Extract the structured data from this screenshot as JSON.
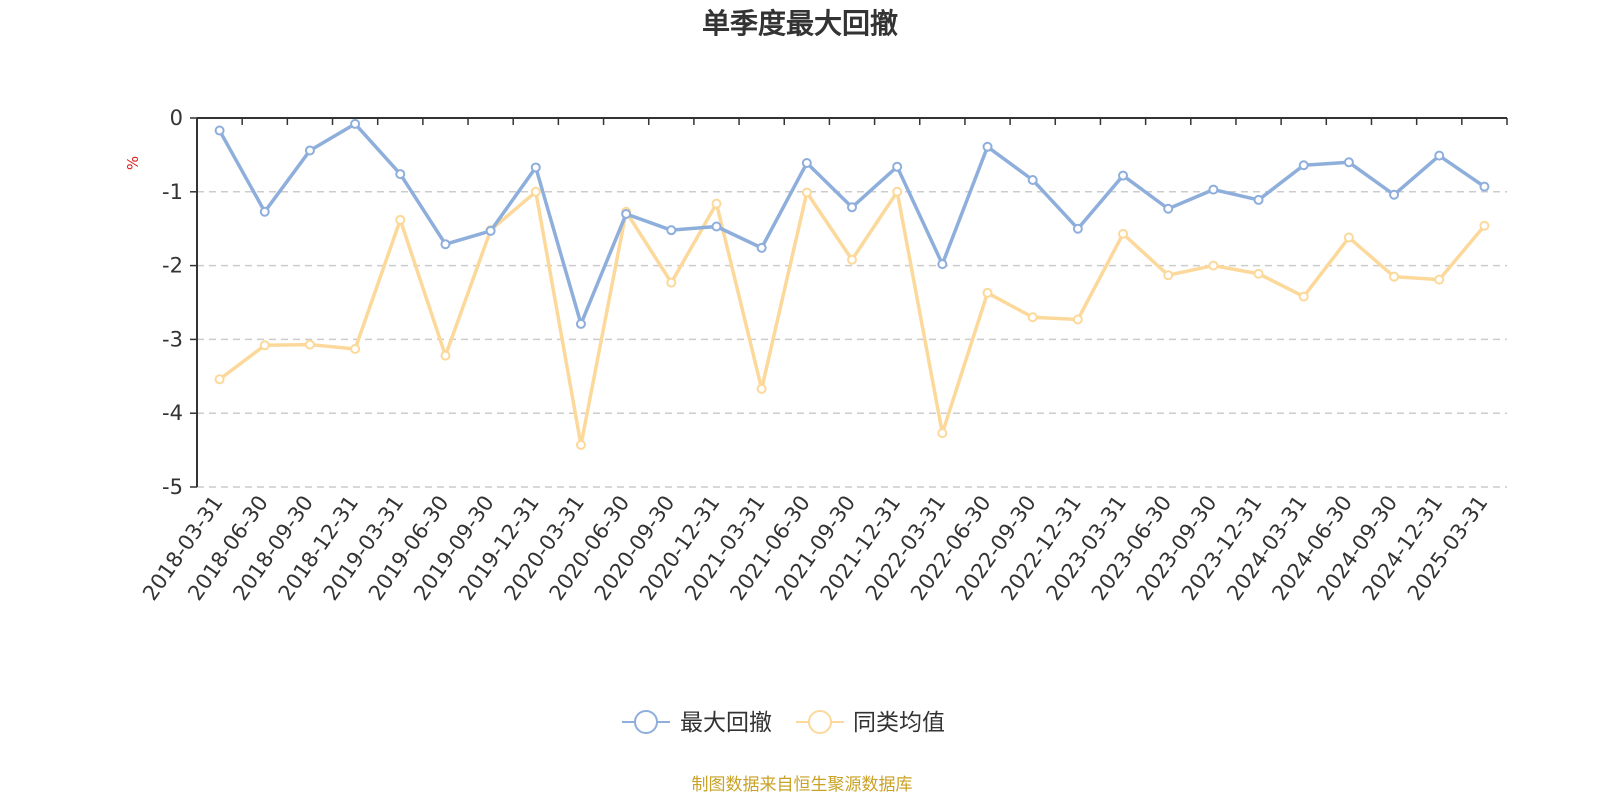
{
  "chart_data": {
    "type": "line",
    "title": "单季度最大回撤",
    "ylabel": "%",
    "xlabel": "",
    "ylim": [
      -5,
      0
    ],
    "yticks": [
      0,
      -1,
      -2,
      -3,
      -4,
      -5
    ],
    "grid": true,
    "legend_position": "bottom",
    "categories": [
      "2018-03-31",
      "2018-06-30",
      "2018-09-30",
      "2018-12-31",
      "2019-03-31",
      "2019-06-30",
      "2019-09-30",
      "2019-12-31",
      "2020-03-31",
      "2020-06-30",
      "2020-09-30",
      "2020-12-31",
      "2021-03-31",
      "2021-06-30",
      "2021-09-30",
      "2021-12-31",
      "2022-03-31",
      "2022-06-30",
      "2022-09-30",
      "2022-12-31",
      "2023-03-31",
      "2023-06-30",
      "2023-09-30",
      "2023-12-31",
      "2024-03-31",
      "2024-06-30",
      "2024-09-30",
      "2024-12-31",
      "2025-03-31"
    ],
    "series": [
      {
        "name": "最大回撤",
        "color": "#8eaedb",
        "values": [
          -0.17,
          -1.27,
          -0.44,
          -0.08,
          -0.76,
          -1.71,
          -1.53,
          -0.67,
          -2.79,
          -1.3,
          -1.52,
          -1.47,
          -1.76,
          -0.61,
          -1.21,
          -0.66,
          -1.98,
          -0.39,
          -0.84,
          -1.5,
          -0.78,
          -1.23,
          -0.97,
          -1.11,
          -0.64,
          -0.6,
          -1.04,
          -0.51,
          -0.93
        ]
      },
      {
        "name": "同类均值",
        "color": "#fcd99a",
        "values": [
          -3.54,
          -3.08,
          -3.07,
          -3.13,
          -1.38,
          -3.22,
          -1.52,
          -1.0,
          -4.43,
          -1.27,
          -2.23,
          -1.16,
          -3.67,
          -1.01,
          -1.92,
          -1.0,
          -4.27,
          -2.37,
          -2.7,
          -2.73,
          -1.57,
          -2.13,
          -2.0,
          -2.11,
          -2.42,
          -1.62,
          -2.15,
          -2.19,
          -1.46
        ]
      }
    ],
    "source": "制图数据来自恒生聚源数据库",
    "source_color": "#c9a227",
    "unit_color": "#e02020"
  }
}
